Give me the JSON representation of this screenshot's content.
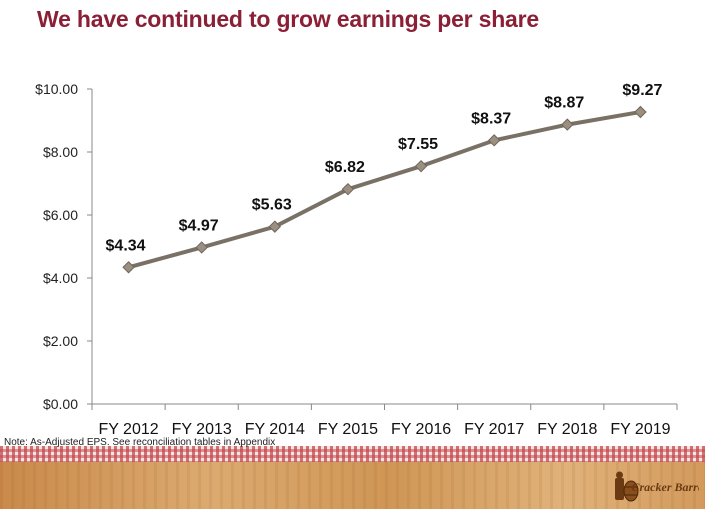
{
  "slide": {
    "title": "We have continued to grow earnings per share",
    "note": "Note: As-Adjusted EPS. See reconciliation tables in Appendix",
    "logo_text": "Cracker Barrel"
  },
  "colors": {
    "title": "#8a1f35",
    "line": "#7a7166",
    "marker": "#9b8f80",
    "axis": "#888888"
  },
  "chart_data": {
    "type": "line",
    "title": "",
    "xlabel": "",
    "ylabel": "",
    "categories": [
      "FY 2012",
      "FY 2013",
      "FY 2014",
      "FY 2015",
      "FY 2016",
      "FY 2017",
      "FY 2018",
      "FY 2019"
    ],
    "series": [
      {
        "name": "As-Adjusted EPS",
        "values": [
          4.34,
          4.97,
          5.63,
          6.82,
          7.55,
          8.37,
          8.87,
          9.27
        ],
        "labels": [
          "$4.34",
          "$4.97",
          "$5.63",
          "$6.82",
          "$7.55",
          "$8.37",
          "$8.87",
          "$9.27"
        ]
      }
    ],
    "ylim": [
      0,
      10
    ],
    "yticks": [
      0,
      2,
      4,
      6,
      8,
      10
    ],
    "ytick_labels": [
      "$0.00",
      "$2.00",
      "$4.00",
      "$6.00",
      "$8.00",
      "$10.00"
    ],
    "grid": false,
    "legend": "none"
  }
}
